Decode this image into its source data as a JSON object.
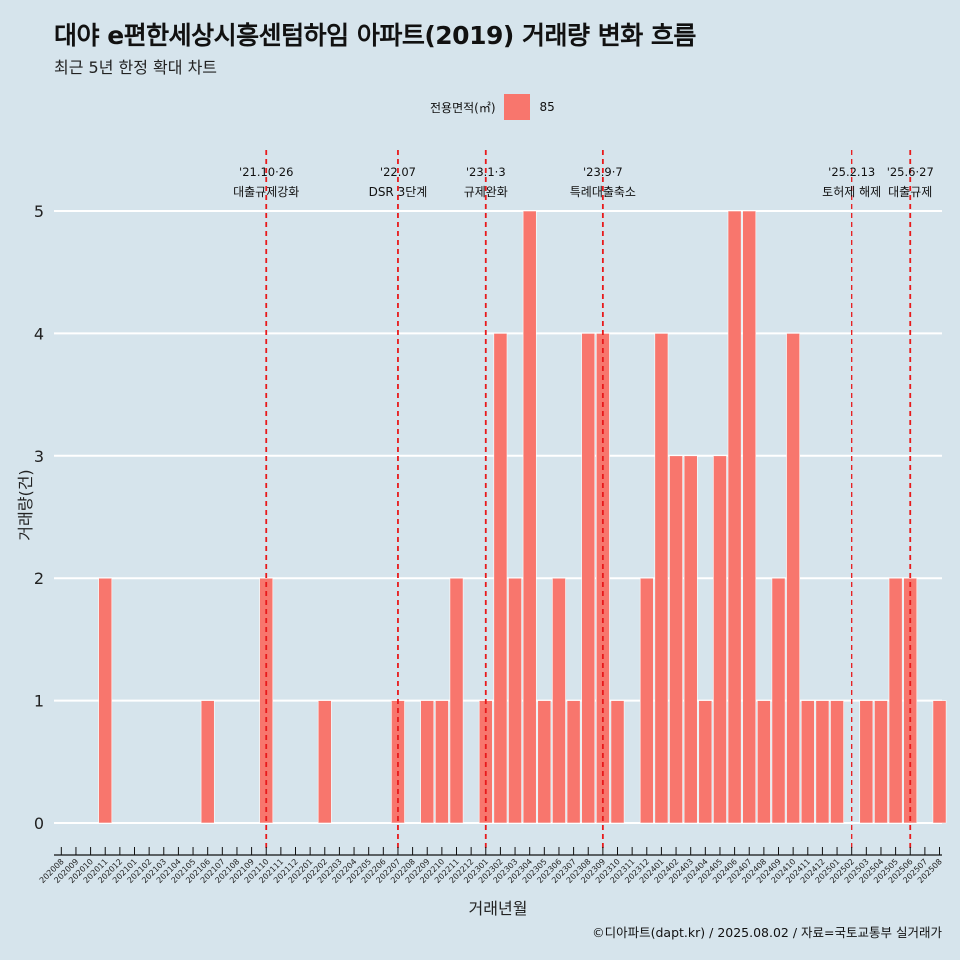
{
  "header": {
    "title": "대야 e편한세상시흥센텀하임 아파트(2019) 거래량 변화 흐름",
    "subtitle": "최근 5년 한정 확대 차트"
  },
  "legend": {
    "title": "전용면적(㎡)",
    "series_label": "85",
    "color": "#f8766d"
  },
  "footer": {
    "caption": "©디아파트(dapt.kr) / 2025.08.02 / 자료=국토교통부 실거래가"
  },
  "chart_data": {
    "type": "bar",
    "xlabel": "거래년월",
    "ylabel": "거래량(건)",
    "ylim": [
      0,
      5
    ],
    "yticks": [
      0,
      1,
      2,
      3,
      4,
      5
    ],
    "bar_color": "#f8766d",
    "grid": true,
    "legend_position": "top",
    "categories": [
      "202008",
      "202009",
      "202010",
      "202011",
      "202012",
      "202101",
      "202102",
      "202103",
      "202104",
      "202105",
      "202106",
      "202107",
      "202108",
      "202109",
      "202110",
      "202111",
      "202112",
      "202201",
      "202202",
      "202203",
      "202204",
      "202205",
      "202206",
      "202207",
      "202208",
      "202209",
      "202210",
      "202211",
      "202212",
      "202301",
      "202302",
      "202303",
      "202304",
      "202305",
      "202306",
      "202307",
      "202308",
      "202309",
      "202310",
      "202311",
      "202312",
      "202401",
      "202402",
      "202403",
      "202404",
      "202405",
      "202406",
      "202407",
      "202408",
      "202409",
      "202410",
      "202411",
      "202412",
      "202501",
      "202502",
      "202503",
      "202504",
      "202505",
      "202506",
      "202507",
      "202508"
    ],
    "series": [
      {
        "name": "85",
        "values": [
          0,
          0,
          0,
          2,
          0,
          0,
          0,
          0,
          0,
          0,
          1,
          0,
          0,
          0,
          2,
          0,
          0,
          0,
          1,
          0,
          0,
          0,
          0,
          1,
          0,
          1,
          1,
          2,
          0,
          1,
          4,
          2,
          5,
          1,
          2,
          1,
          4,
          4,
          1,
          0,
          2,
          4,
          3,
          3,
          1,
          3,
          5,
          5,
          1,
          2,
          4,
          1,
          1,
          1,
          0,
          1,
          1,
          2,
          2,
          0,
          1
        ]
      }
    ],
    "events": [
      {
        "category": "202110",
        "date": "'21.10·26",
        "label": "대출규제강화"
      },
      {
        "category": "202207",
        "date": "'22.07",
        "label": "DSR 3단계"
      },
      {
        "category": "202301",
        "date": "'23.1·3",
        "label": "규제완화"
      },
      {
        "category": "202309",
        "date": "'23.9·7",
        "label": "특례대출축소"
      },
      {
        "category": "202502",
        "date": "'25.2.13",
        "label": "토허제 해제"
      },
      {
        "category": "202506",
        "date": "'25.6·27",
        "label": "대출규제"
      }
    ],
    "event_line_color": "#e8191b"
  }
}
